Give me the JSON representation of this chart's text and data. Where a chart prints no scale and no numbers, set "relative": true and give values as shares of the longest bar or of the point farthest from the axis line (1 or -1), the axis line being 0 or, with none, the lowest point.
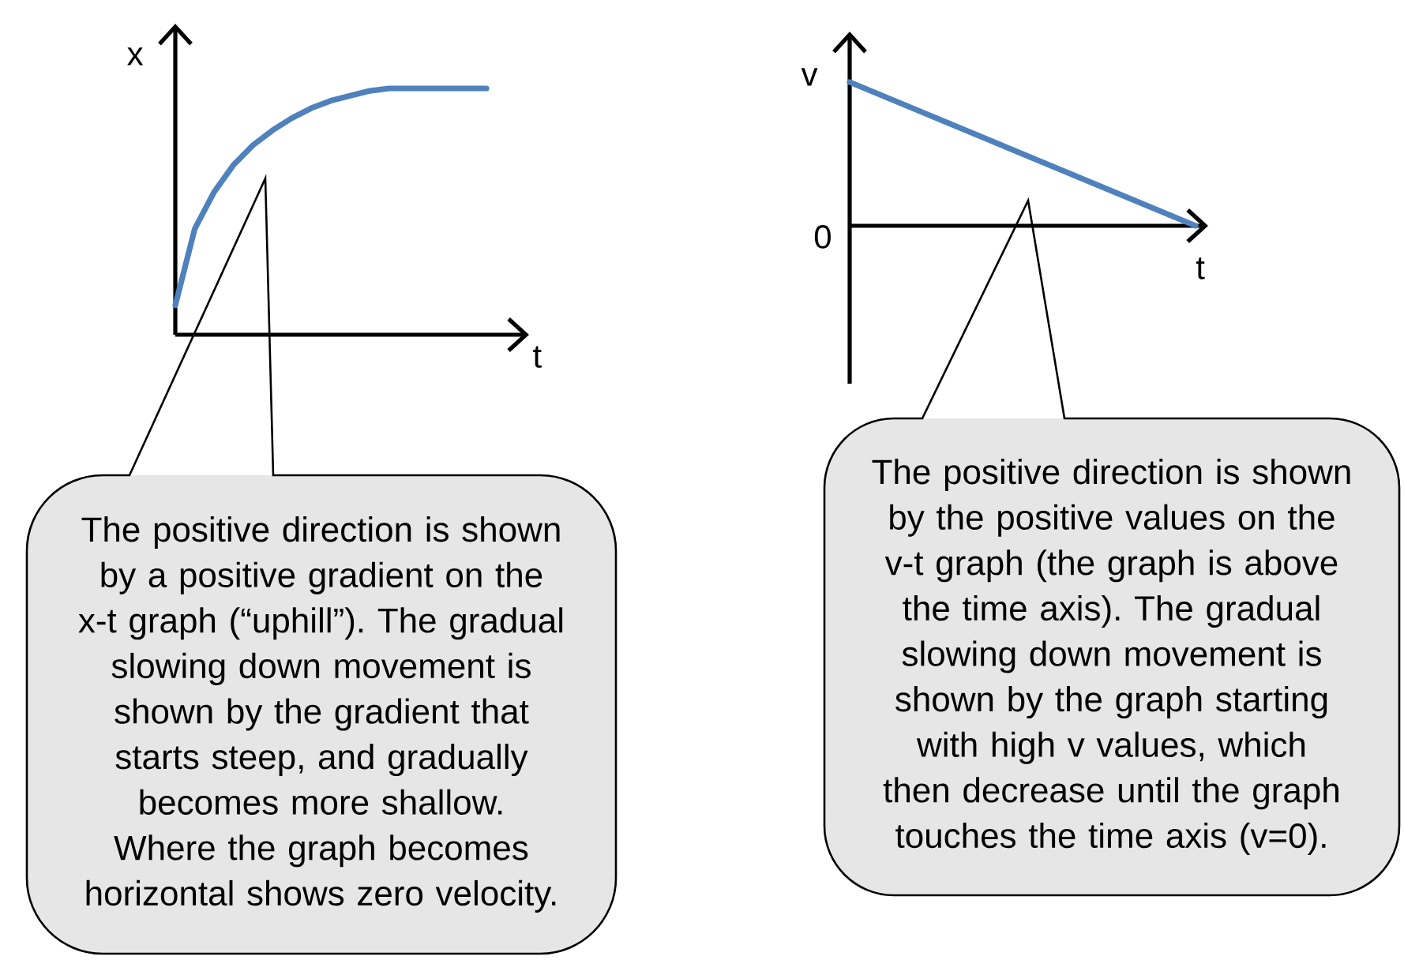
{
  "chart_data": [
    {
      "type": "line",
      "xlabel": "t",
      "ylabel": "x",
      "relative": true,
      "categories": [
        null,
        null,
        null,
        null,
        null,
        null,
        null,
        null,
        null,
        null,
        null,
        null,
        null,
        null,
        null,
        null,
        null
      ],
      "values": [
        0.12,
        0.43,
        0.58,
        0.69,
        0.77,
        0.83,
        0.88,
        0.92,
        0.95,
        0.97,
        0.99,
        1,
        1,
        1,
        1,
        1,
        1
      ],
      "color": "#4f81bd",
      "annotations": [
        "The positive direction is shown by a positive gradient on the x-t graph (“uphill”). The gradual slowing down movement is shown by the gradient that starts steep, and gradually becomes more shallow. Where the graph becomes horizontal shows zero velocity."
      ]
    },
    {
      "type": "line",
      "xlabel": "t",
      "ylabel": "v",
      "relative": true,
      "categories": [
        null,
        null
      ],
      "values": [
        1,
        0
      ],
      "color": "#4f81bd",
      "annotations": [
        "0",
        "The positive direction is shown by the positive values on the v-t graph (the graph is above the time axis). The gradual slowing down movement is shown by the graph starting with high v values, which then decrease until the graph touches the time axis (v=0)."
      ]
    }
  ]
}
